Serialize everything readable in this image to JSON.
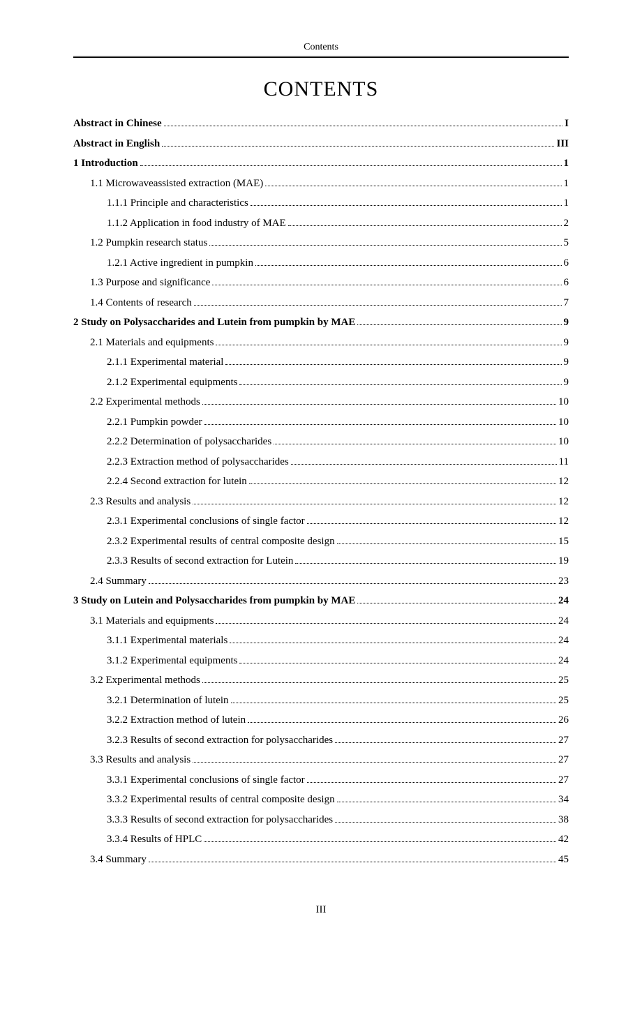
{
  "header_label": "Contents",
  "main_title": "CONTENTS",
  "page_number": "III",
  "toc": [
    {
      "label": "Abstract in Chinese",
      "page": "I",
      "indent": 0,
      "bold": true
    },
    {
      "label": "Abstract in English",
      "page": "III",
      "indent": 0,
      "bold": true
    },
    {
      "label": "1 Introduction",
      "page": "1",
      "indent": 0,
      "bold": true
    },
    {
      "label": "1.1 Microwaveassisted extraction (MAE)",
      "page": "1",
      "indent": 1,
      "bold": false
    },
    {
      "label": "1.1.1 Principle and characteristics",
      "page": "1",
      "indent": 2,
      "bold": false
    },
    {
      "label": "1.1.2 Application in food industry of MAE",
      "page": "2",
      "indent": 2,
      "bold": false
    },
    {
      "label": "1.2 Pumpkin research status",
      "page": "5",
      "indent": 1,
      "bold": false
    },
    {
      "label": "1.2.1 Active ingredient in pumpkin",
      "page": "6",
      "indent": 2,
      "bold": false
    },
    {
      "label": "1.3 Purpose and significance",
      "page": "6",
      "indent": 1,
      "bold": false
    },
    {
      "label": "1.4 Contents of research",
      "page": "7",
      "indent": 1,
      "bold": false
    },
    {
      "label": "2 Study on Polysaccharides and Lutein from pumpkin by MAE",
      "page": "9",
      "indent": 0,
      "bold": true
    },
    {
      "label": "2.1 Materials and equipments",
      "page": "9",
      "indent": 1,
      "bold": false
    },
    {
      "label": "2.1.1 Experimental material",
      "page": "9",
      "indent": 2,
      "bold": false
    },
    {
      "label": "2.1.2 Experimental equipments",
      "page": "9",
      "indent": 2,
      "bold": false
    },
    {
      "label": "2.2 Experimental methods",
      "page": "10",
      "indent": 1,
      "bold": false
    },
    {
      "label": "2.2.1 Pumpkin powder",
      "page": "10",
      "indent": 2,
      "bold": false
    },
    {
      "label": "2.2.2 Determination of polysaccharides",
      "page": "10",
      "indent": 2,
      "bold": false
    },
    {
      "label": "2.2.3 Extraction method of polysaccharides",
      "page": "11",
      "indent": 2,
      "bold": false
    },
    {
      "label": "2.2.4 Second extraction for lutein",
      "page": "12",
      "indent": 2,
      "bold": false
    },
    {
      "label": "2.3 Results and analysis",
      "page": "12",
      "indent": 1,
      "bold": false
    },
    {
      "label": "2.3.1 Experimental conclusions of single factor",
      "page": "12",
      "indent": 2,
      "bold": false
    },
    {
      "label": "2.3.2 Experimental results of central composite design",
      "page": "15",
      "indent": 2,
      "bold": false
    },
    {
      "label": "2.3.3 Results of second extraction for Lutein",
      "page": "19",
      "indent": 2,
      "bold": false
    },
    {
      "label": "2.4 Summary",
      "page": "23",
      "indent": 1,
      "bold": false
    },
    {
      "label": "3 Study on Lutein and Polysaccharides from pumpkin by MAE",
      "page": "24",
      "indent": 0,
      "bold": true
    },
    {
      "label": "3.1 Materials and equipments",
      "page": "24",
      "indent": 1,
      "bold": false
    },
    {
      "label": "3.1.1 Experimental materials",
      "page": "24",
      "indent": 2,
      "bold": false
    },
    {
      "label": "3.1.2 Experimental equipments",
      "page": "24",
      "indent": 2,
      "bold": false
    },
    {
      "label": "3.2 Experimental methods",
      "page": "25",
      "indent": 1,
      "bold": false
    },
    {
      "label": "3.2.1 Determination of lutein",
      "page": "25",
      "indent": 2,
      "bold": false
    },
    {
      "label": "3.2.2 Extraction method of lutein",
      "page": "26",
      "indent": 2,
      "bold": false
    },
    {
      "label": "3.2.3 Results of second extraction for polysaccharides",
      "page": "27",
      "indent": 2,
      "bold": false
    },
    {
      "label": "3.3 Results and analysis",
      "page": "27",
      "indent": 1,
      "bold": false
    },
    {
      "label": "3.3.1 Experimental conclusions of single factor",
      "page": "27",
      "indent": 2,
      "bold": false
    },
    {
      "label": "3.3.2 Experimental results of central composite design",
      "page": "34",
      "indent": 2,
      "bold": false
    },
    {
      "label": "3.3.3 Results of second extraction for polysaccharides",
      "page": "38",
      "indent": 2,
      "bold": false
    },
    {
      "label": "3.3.4 Results of HPLC",
      "page": "42",
      "indent": 2,
      "bold": false
    },
    {
      "label": "3.4 Summary",
      "page": "45",
      "indent": 1,
      "bold": false
    }
  ]
}
